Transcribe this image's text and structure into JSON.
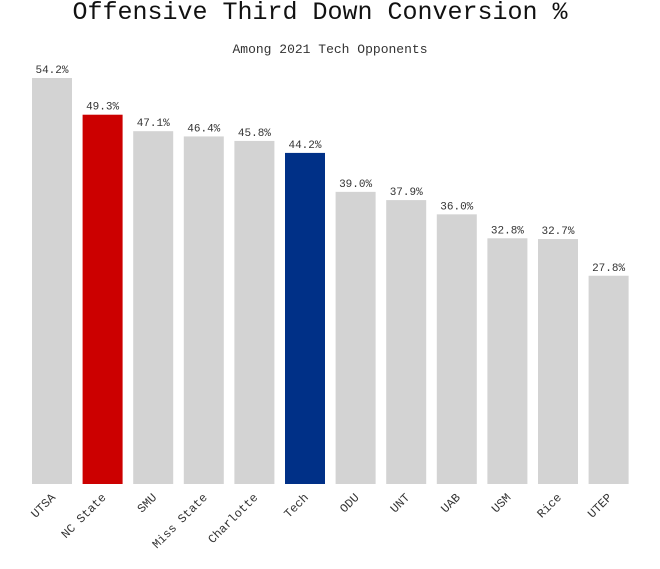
{
  "chart_data": {
    "type": "bar",
    "title": "Offensive Third Down Conversion %",
    "subtitle": "Among 2021 Tech Opponents",
    "xlabel": "",
    "ylabel": "",
    "ylim": [
      0,
      60
    ],
    "grid": false,
    "legend": "none",
    "value_suffix": "%",
    "categories": [
      "UTSA",
      "NC State",
      "SMU",
      "Miss State",
      "Charlotte",
      "Tech",
      "ODU",
      "UNT",
      "UAB",
      "USM",
      "Rice",
      "UTEP"
    ],
    "values": [
      54.2,
      49.3,
      47.1,
      46.4,
      45.8,
      44.2,
      39.0,
      37.9,
      36.0,
      32.8,
      32.7,
      27.8
    ],
    "colors": [
      "#d3d3d3",
      "#cc0000",
      "#d3d3d3",
      "#d3d3d3",
      "#d3d3d3",
      "#003087",
      "#d3d3d3",
      "#d3d3d3",
      "#d3d3d3",
      "#d3d3d3",
      "#d3d3d3",
      "#d3d3d3"
    ]
  }
}
